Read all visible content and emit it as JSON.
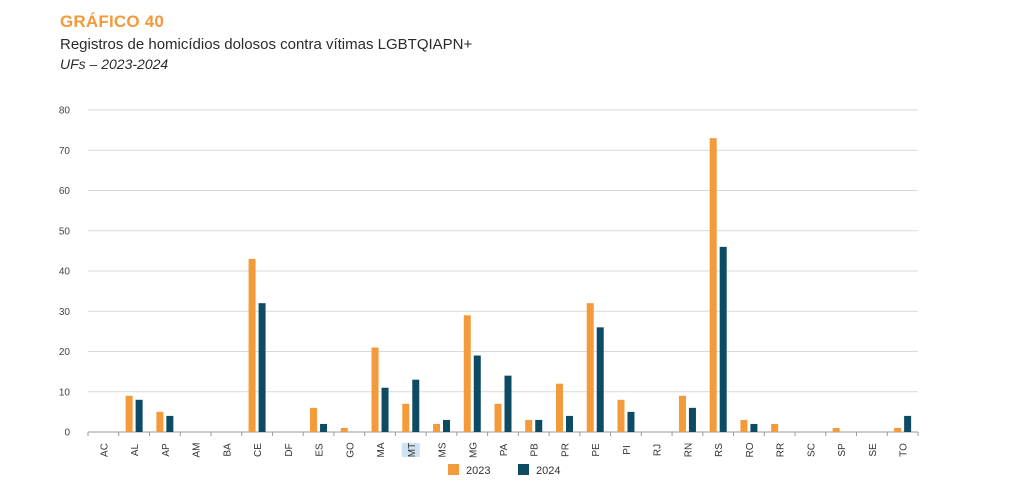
{
  "header": {
    "label": "GRÁFICO 40",
    "title": "Registros de homicídios dolosos contra vítimas LGBTQIAPN+",
    "subtitle": "UFs – 2023-2024"
  },
  "chart_data": {
    "type": "bar",
    "title": "Registros de homicídios dolosos contra vítimas LGBTQIAPN+",
    "subtitle": "UFs – 2023-2024",
    "xlabel": "",
    "ylabel": "",
    "ylim": [
      0,
      80
    ],
    "yticks": [
      0,
      10,
      20,
      30,
      40,
      50,
      60,
      70,
      80
    ],
    "grid": true,
    "legend_position": "bottom",
    "categories": [
      "AC",
      "AL",
      "AP",
      "AM",
      "BA",
      "CE",
      "DF",
      "ES",
      "GO",
      "MA",
      "MT",
      "MS",
      "MG",
      "PA",
      "PB",
      "PR",
      "PE",
      "PI",
      "RJ",
      "RN",
      "RS",
      "RO",
      "RR",
      "SC",
      "SP",
      "SE",
      "TO"
    ],
    "highlighted_category": "MT",
    "series": [
      {
        "name": "2023",
        "color": "#f39a3b",
        "values": [
          0,
          9,
          5,
          0,
          0,
          43,
          0,
          6,
          1,
          21,
          7,
          2,
          29,
          7,
          3,
          12,
          32,
          8,
          0,
          9,
          73,
          3,
          2,
          0,
          1,
          0,
          1
        ]
      },
      {
        "name": "2024",
        "color": "#0d4a63",
        "values": [
          0,
          8,
          4,
          0,
          0,
          32,
          0,
          2,
          0,
          11,
          13,
          3,
          19,
          14,
          3,
          4,
          26,
          5,
          0,
          6,
          46,
          2,
          0,
          0,
          0,
          0,
          4
        ]
      }
    ]
  }
}
